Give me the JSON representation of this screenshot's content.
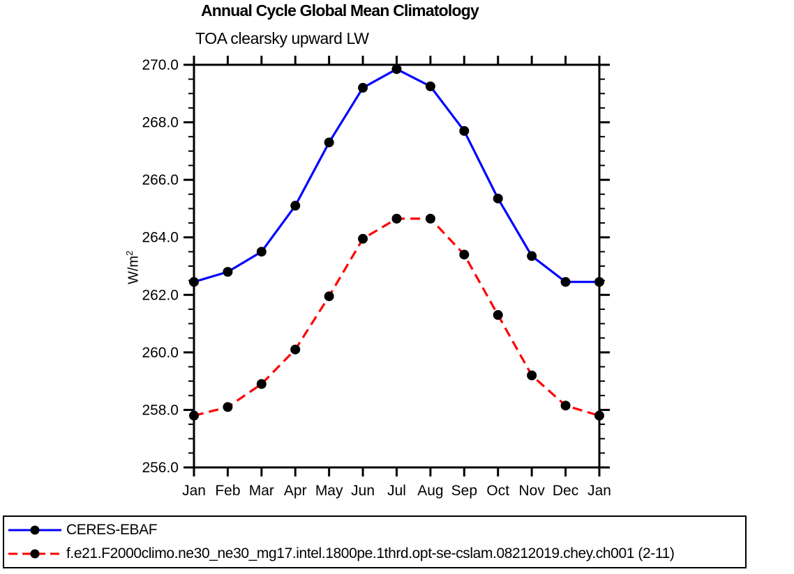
{
  "title": "Annual Cycle Global Mean Climatology",
  "subtitle": "TOA clearsky upward LW",
  "ylabel": {
    "text": "W/m",
    "sup": "2"
  },
  "colors": {
    "obs_line": "#0000ff",
    "model_line": "#ff0000",
    "marker": "#000000",
    "axis": "#000000"
  },
  "chart_data": {
    "type": "line",
    "title": "Annual Cycle Global Mean Climatology",
    "subtitle": "TOA clearsky upward LW",
    "xlabel": "",
    "ylabel": "W/m2",
    "categories": [
      "Jan",
      "Feb",
      "Mar",
      "Apr",
      "May",
      "Jun",
      "Jul",
      "Aug",
      "Sep",
      "Oct",
      "Nov",
      "Dec",
      "Jan"
    ],
    "series": [
      {
        "name": "CERES-EBAF",
        "color": "#0000ff",
        "line_style": "solid",
        "marker": "filled-circle",
        "marker_color": "#000000",
        "values": [
          262.45,
          262.8,
          263.5,
          265.1,
          267.3,
          269.2,
          269.85,
          269.25,
          267.7,
          265.35,
          263.35,
          262.45,
          262.45
        ]
      },
      {
        "name": "f.e21.F2000climo.ne30_ne30_mg17.intel.1800pe.1thrd.opt-se-cslam.08212019.chey.ch001 (2-11)",
        "color": "#ff0000",
        "line_style": "dashed",
        "marker": "filled-circle",
        "marker_color": "#000000",
        "values": [
          257.8,
          258.1,
          258.9,
          260.1,
          261.95,
          263.95,
          264.65,
          264.65,
          263.4,
          261.3,
          259.2,
          258.15,
          257.8
        ]
      }
    ],
    "ylim": [
      256.0,
      270.0
    ],
    "ytick_major": [
      256,
      258,
      260,
      262,
      264,
      266,
      268,
      270
    ],
    "ytick_labels": [
      "256.0",
      "258.0",
      "260.0",
      "262.0",
      "264.0",
      "266.0",
      "268.0",
      "270.0"
    ],
    "ytick_minor_step": 0.5,
    "grid": false,
    "frame": "box-with-outward-ticks",
    "legend_position": "bottom-left-box"
  }
}
